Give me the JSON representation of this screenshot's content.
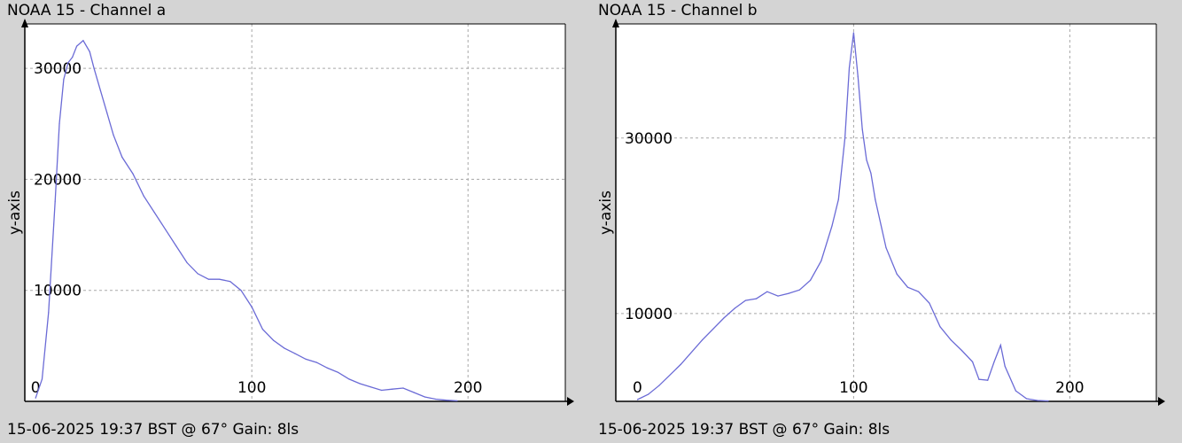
{
  "chart_data": [
    {
      "type": "line",
      "title": "NOAA 15 - Channel a",
      "ylabel": "y-axis",
      "xlabel": "",
      "footer": "15-06-2025 19:37 BST @ 67° Gain: 8ls",
      "xlim": [
        -5,
        245
      ],
      "ylim": [
        0,
        34000
      ],
      "xticks": [
        0,
        100,
        200
      ],
      "yticks": [
        10000,
        20000,
        30000
      ],
      "grid": true,
      "line_color": "#6b6bd6",
      "series": [
        {
          "x": [
            0,
            3,
            6,
            9,
            11,
            13,
            15,
            17,
            19,
            22,
            25,
            27,
            30,
            33,
            36,
            40,
            45,
            50,
            55,
            60,
            65,
            70,
            75,
            80,
            85,
            90,
            95,
            100,
            105,
            110,
            115,
            120,
            125,
            130,
            135,
            140,
            145,
            150,
            155,
            160,
            165,
            170,
            175,
            180,
            185,
            190,
            195
          ],
          "values": [
            300,
            2000,
            8000,
            18000,
            25000,
            29000,
            30500,
            31000,
            32000,
            32500,
            31500,
            30000,
            28000,
            26000,
            24000,
            22000,
            20500,
            18500,
            17000,
            15500,
            14000,
            12500,
            11500,
            11000,
            11000,
            10800,
            10000,
            8500,
            6500,
            5500,
            4800,
            4300,
            3800,
            3500,
            3000,
            2600,
            2000,
            1600,
            1300,
            1000,
            1100,
            1200,
            800,
            400,
            200,
            100,
            50
          ]
        }
      ]
    },
    {
      "type": "line",
      "title": "NOAA 15 - Channel b",
      "ylabel": "y-axis",
      "xlabel": "",
      "footer": "15-06-2025 19:37 BST @ 67° Gain: 8ls",
      "xlim": [
        -10,
        240
      ],
      "ylim": [
        0,
        43000
      ],
      "xticks": [
        0,
        100,
        200
      ],
      "yticks": [
        10000,
        30000
      ],
      "grid": true,
      "line_color": "#6b6bd6",
      "series": [
        {
          "x": [
            0,
            5,
            10,
            20,
            30,
            40,
            45,
            50,
            55,
            60,
            65,
            70,
            75,
            80,
            85,
            90,
            93,
            96,
            98,
            100,
            102,
            104,
            106,
            108,
            110,
            115,
            120,
            125,
            130,
            135,
            140,
            145,
            150,
            155,
            158,
            162,
            165,
            168,
            170,
            175,
            180,
            185,
            190
          ],
          "values": [
            200,
            800,
            1800,
            4200,
            7000,
            9500,
            10600,
            11500,
            11700,
            12500,
            12000,
            12300,
            12700,
            13800,
            16000,
            20000,
            23000,
            30000,
            38000,
            42000,
            37000,
            31000,
            27500,
            26000,
            23000,
            17500,
            14500,
            13000,
            12500,
            11200,
            8500,
            7000,
            5800,
            4500,
            2500,
            2400,
            4500,
            6400,
            4000,
            1200,
            300,
            100,
            50
          ]
        }
      ]
    }
  ]
}
